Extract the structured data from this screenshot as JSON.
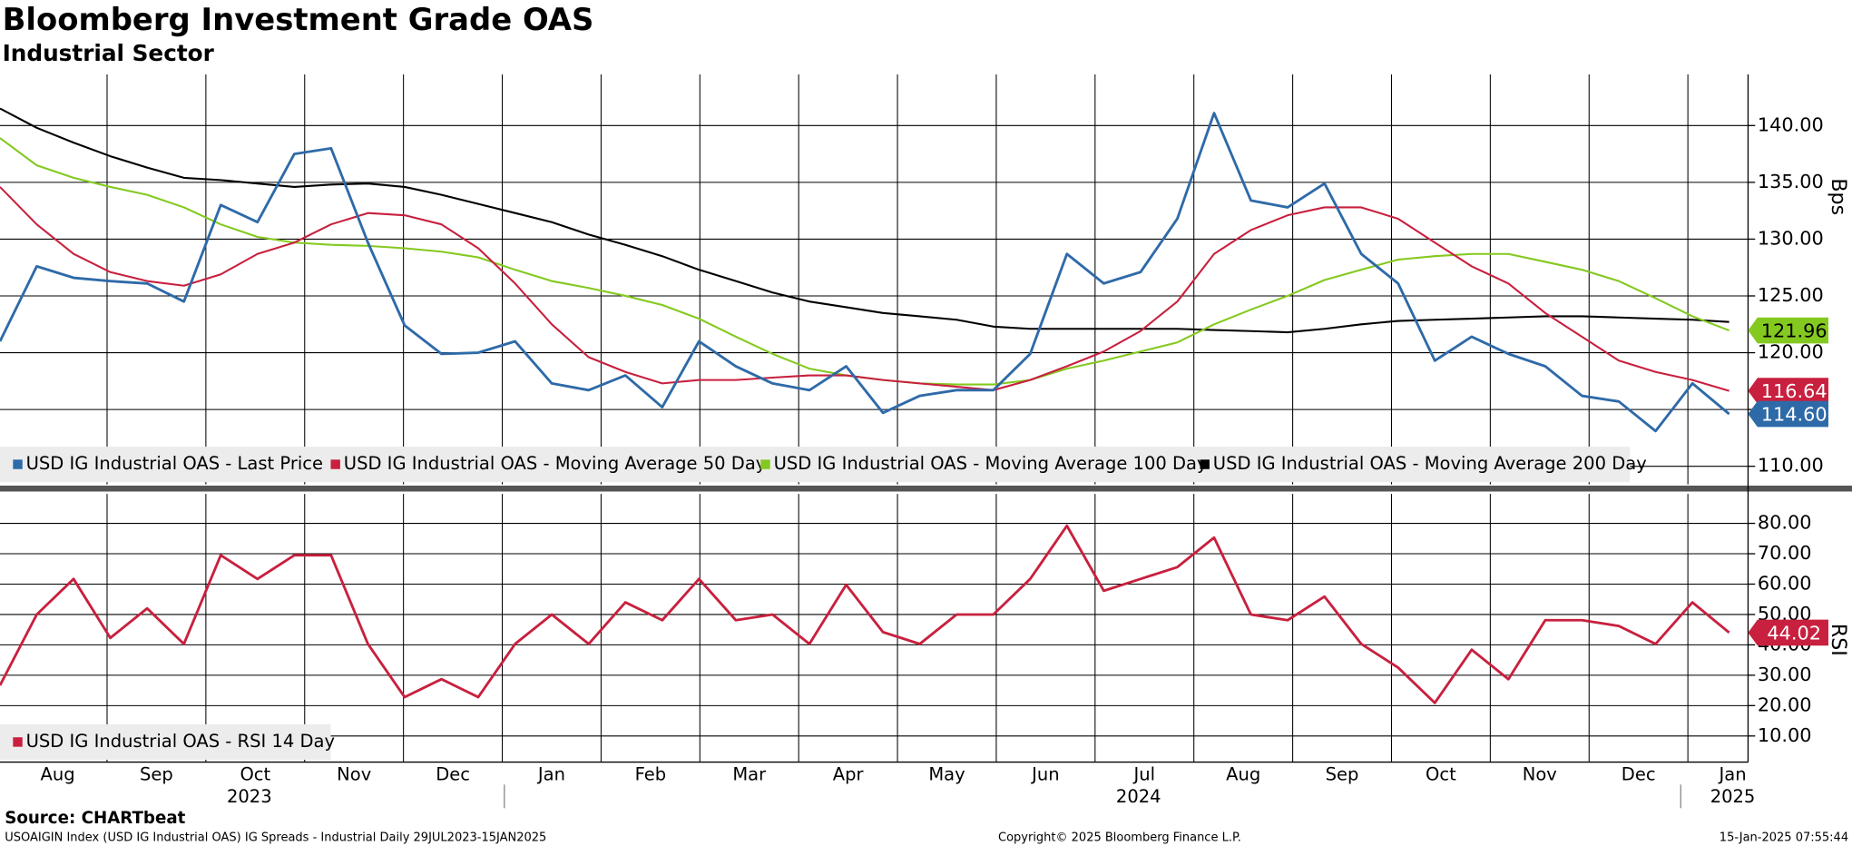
{
  "header": {
    "title": "Bloomberg Investment Grade OAS",
    "subtitle": "Industrial Sector"
  },
  "footer": {
    "source": "Source: CHARTbeat",
    "description": "USOAIGIN Index (USD IG Industrial OAS) IG Spreads - Industrial  Daily 29JUL2023-15JAN2025",
    "copyright": "Copyright© 2025 Bloomberg Finance L.P.",
    "timestamp": "15-Jan-2025 07:55:44"
  },
  "x_axis": {
    "categories": [
      "Aug",
      "Sep",
      "Oct",
      "Nov",
      "Dec",
      "Jan",
      "Feb",
      "Mar",
      "Apr",
      "May",
      "Jun",
      "Jul",
      "Aug",
      "Sep",
      "Oct",
      "Nov",
      "Dec",
      "Jan"
    ],
    "year_labels": [
      null,
      null,
      "2023",
      null,
      null,
      null,
      null,
      null,
      null,
      null,
      null,
      "2024",
      null,
      null,
      null,
      null,
      null,
      "2025"
    ]
  },
  "chart_data": [
    {
      "type": "line",
      "y_label": "Bps",
      "grid": true,
      "legend": "bottom-left",
      "ylim": [
        108.4,
        144.5
      ],
      "yticks": [
        {
          "value": 110,
          "label": "110.00"
        },
        {
          "value": 115,
          "label": "115.00"
        },
        {
          "value": 120,
          "label": "120.00"
        },
        {
          "value": 125,
          "label": "125.00"
        },
        {
          "value": 130,
          "label": "130.00"
        },
        {
          "value": 135,
          "label": "135.00"
        },
        {
          "value": 140,
          "label": "140.00"
        }
      ],
      "series": [
        {
          "name": "USD IG Industrial OAS - Moving Average 200 Day",
          "color": "#000000",
          "values": [
            141.5,
            139.8,
            138.5,
            137.3,
            136.3,
            135.4,
            135.2,
            134.9,
            134.6,
            134.8,
            134.9,
            134.6,
            133.9,
            133.1,
            132.3,
            131.5,
            130.4,
            129.5,
            128.5,
            127.3,
            126.3,
            125.3,
            124.5,
            124,
            123.5,
            123.2,
            122.9,
            122.3,
            122.1,
            122.1,
            122.1,
            122.1,
            122.1,
            122,
            121.9,
            121.8,
            122.1,
            122.5,
            122.8,
            122.9,
            123,
            123.1,
            123.2,
            123.2,
            123.1,
            123,
            122.9,
            122.7
          ]
        },
        {
          "name": "USD IG Industrial OAS - Moving Average 100 Day",
          "color": "#84c91f",
          "values": [
            138.9,
            136.5,
            135.4,
            134.6,
            133.9,
            132.8,
            131.3,
            130.2,
            129.7,
            129.5,
            129.4,
            129.2,
            128.9,
            128.4,
            127.3,
            126.3,
            125.7,
            125,
            124.2,
            123,
            121.4,
            119.9,
            118.6,
            118,
            117.6,
            117.3,
            117.2,
            117.2,
            117.6,
            118.6,
            119.3,
            120.1,
            120.9,
            122.5,
            123.8,
            125,
            126.4,
            127.3,
            128.2,
            128.5,
            128.7,
            128.7,
            128,
            127.3,
            126.3,
            124.8,
            123.2,
            121.96
          ]
        },
        {
          "name": "USD IG Industrial OAS - Moving Average 50 Day",
          "color": "#c8203e",
          "values": [
            134.6,
            131.3,
            128.7,
            127.1,
            126.3,
            125.9,
            126.9,
            128.7,
            129.7,
            131.3,
            132.3,
            132.1,
            131.3,
            129.2,
            126.1,
            122.5,
            119.6,
            118.3,
            117.3,
            117.6,
            117.6,
            117.8,
            118,
            118,
            117.6,
            117.3,
            117,
            116.7,
            117.6,
            118.8,
            120.1,
            121.9,
            124.5,
            128.7,
            130.8,
            132.1,
            132.8,
            132.8,
            131.8,
            129.7,
            127.6,
            126.1,
            123.5,
            121.4,
            119.3,
            118.3,
            117.6,
            116.64
          ]
        },
        {
          "name": "USD IG Industrial OAS - Last Price",
          "color": "#2e6aa8",
          "values": [
            121,
            127.6,
            126.6,
            126.3,
            126.1,
            124.5,
            133,
            131.5,
            137.5,
            138,
            129.7,
            122.4,
            119.9,
            120,
            121,
            117.3,
            116.7,
            118,
            115.2,
            121,
            118.8,
            117.3,
            116.7,
            118.8,
            114.7,
            116.2,
            116.7,
            116.7,
            119.9,
            128.7,
            126.1,
            127.1,
            131.8,
            141.1,
            133.4,
            132.8,
            134.9,
            128.7,
            126.1,
            119.3,
            121.4,
            119.9,
            118.8,
            116.2,
            115.7,
            113.1,
            117.3,
            114.6
          ],
          "value_labels": [
            null,
            null,
            null,
            null,
            null,
            null,
            null,
            null,
            null,
            null,
            null,
            null,
            null,
            null,
            null,
            null,
            null,
            null,
            null,
            null,
            null,
            null,
            null,
            null,
            null,
            null,
            null,
            null,
            null,
            null,
            null,
            null,
            null,
            null,
            null,
            null,
            null,
            null,
            null,
            null,
            null,
            null,
            null,
            null,
            null,
            null,
            null,
            "114.60"
          ]
        }
      ]
    },
    {
      "type": "line",
      "y_label": "RSI",
      "grid": true,
      "legend": "bottom-left",
      "ylim": [
        1.4,
        89.7
      ],
      "yticks": [
        {
          "value": 10,
          "label": "10.00"
        },
        {
          "value": 20,
          "label": "20.00"
        },
        {
          "value": 30,
          "label": "30.00"
        },
        {
          "value": 40,
          "label": "40.00"
        },
        {
          "value": 50,
          "label": "50.00"
        },
        {
          "value": 60,
          "label": "60.00"
        },
        {
          "value": 70,
          "label": "70.00"
        },
        {
          "value": 80,
          "label": "80.00"
        }
      ],
      "series": [
        {
          "name": "USD IG Industrial OAS - RSI 14 Day",
          "color": "#c8203e",
          "values": [
            26.7,
            50,
            61.7,
            42.3,
            52,
            40.3,
            69.5,
            61.7,
            69.5,
            69.5,
            40.3,
            22.8,
            28.7,
            22.8,
            40.3,
            50,
            40.3,
            54,
            48.1,
            61.7,
            48.1,
            50,
            40.3,
            59.8,
            44.2,
            40.3,
            50,
            50,
            61.7,
            79.2,
            57.8,
            61.7,
            65.6,
            75.3,
            50,
            48.1,
            55.9,
            40.3,
            32.5,
            20.9,
            38.4,
            28.7,
            48.1,
            48.1,
            46.2,
            40.3,
            54,
            44.02
          ]
        }
      ]
    }
  ]
}
